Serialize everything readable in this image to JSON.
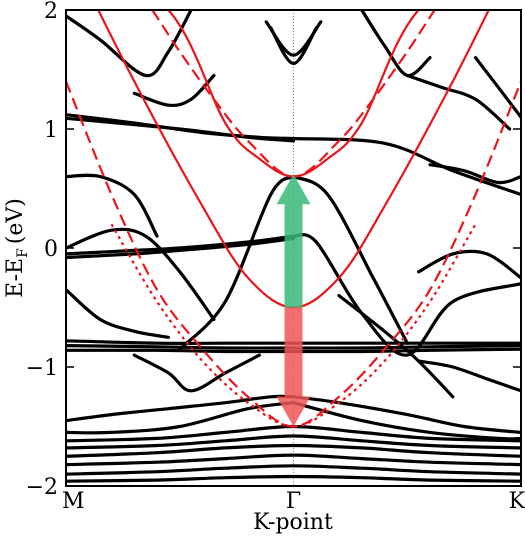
{
  "chart_data": {
    "type": "line",
    "title": "",
    "xlabel": "K-point",
    "ylabel": "E-E",
    "ylabel_subscript": "F",
    "ylabel_unit": "(eV)",
    "ylim": [
      -2,
      2
    ],
    "yticks": [
      -2,
      -1,
      0,
      1,
      2
    ],
    "ytick_labels": [
      "−2",
      "−1",
      "0",
      "1",
      "2"
    ],
    "xlim": [
      -1,
      1
    ],
    "xticks": [
      -1,
      0,
      1
    ],
    "xtick_labels": [
      "M",
      "Γ",
      "K"
    ],
    "gamma_gridline": true,
    "colors": {
      "bands": "#000000",
      "model": "#e8161b",
      "arrow_up": "#3ab878",
      "arrow_down": "#f05656"
    },
    "black_bands": [
      {
        "x": [
          -1,
          -0.7,
          -0.4,
          -0.15,
          0
        ],
        "y": [
          1.12,
          1.05,
          0.97,
          0.93,
          0.92
        ]
      },
      {
        "x": [
          -1,
          -0.5,
          -0.2,
          0
        ],
        "y": [
          1.09,
          1.0,
          0.93,
          0.9
        ]
      },
      {
        "x": [
          0,
          0.4,
          0.7,
          1
        ],
        "y": [
          0.92,
          0.88,
          0.65,
          0.45
        ]
      },
      {
        "x": [
          -1,
          -0.7,
          -0.5,
          -0.2,
          0
        ],
        "y": [
          -0.05,
          -0.02,
          0.0,
          0.05,
          0.1
        ]
      },
      {
        "x": [
          -1,
          -0.7,
          -0.5,
          -0.2,
          0
        ],
        "y": [
          -0.08,
          -0.05,
          -0.02,
          0.03,
          0.08
        ]
      },
      {
        "x": [
          0,
          0.1,
          0.3,
          0.5,
          0.7,
          1
        ],
        "y": [
          0.1,
          0.05,
          -0.55,
          -0.9,
          -0.45,
          -0.3
        ]
      },
      {
        "x": [
          0.55,
          0.7,
          0.85,
          1
        ],
        "y": [
          -0.2,
          -0.05,
          -0.05,
          -0.25
        ]
      },
      {
        "x": [
          -1,
          -0.8,
          -0.65,
          -0.5,
          -0.35
        ],
        "y": [
          0.0,
          0.15,
          0.1,
          -0.2,
          -0.6
        ]
      },
      {
        "x": [
          -1,
          -0.85,
          -0.7,
          -0.55
        ],
        "y": [
          -0.35,
          -0.6,
          -0.7,
          -0.75
        ]
      },
      {
        "x": [
          -1,
          -0.6,
          -0.3,
          0,
          0.3,
          0.6,
          1
        ],
        "y": [
          -0.78,
          -0.8,
          -0.8,
          -0.8,
          -0.8,
          -0.8,
          -0.8
        ]
      },
      {
        "x": [
          -1,
          -0.6,
          -0.3,
          0,
          0.3,
          0.6,
          1
        ],
        "y": [
          -0.82,
          -0.83,
          -0.84,
          -0.84,
          -0.84,
          -0.83,
          -0.82
        ]
      },
      {
        "x": [
          -1,
          -0.6,
          -0.3,
          0,
          0.3,
          0.6,
          1
        ],
        "y": [
          -0.86,
          -0.86,
          -0.87,
          -0.87,
          -0.87,
          -0.86,
          -0.85
        ]
      },
      {
        "x": [
          -0.5,
          -0.3,
          -0.1,
          0
        ],
        "y": [
          -0.85,
          -0.45,
          0.45,
          0.6
        ]
      },
      {
        "x": [
          0,
          0.15,
          0.35,
          0.5
        ],
        "y": [
          0.6,
          0.45,
          -0.25,
          -0.8
        ]
      },
      {
        "x": [
          -1,
          -0.85,
          -0.7,
          -0.6
        ],
        "y": [
          0.6,
          0.6,
          0.45,
          0.1
        ]
      },
      {
        "x": [
          -0.7,
          -0.55,
          -0.45,
          -0.35
        ],
        "y": [
          1.3,
          1.2,
          1.25,
          1.45
        ]
      },
      {
        "x": [
          -1,
          -0.85,
          -0.65,
          -0.55,
          -0.45
        ],
        "y": [
          1.95,
          1.75,
          1.45,
          1.65,
          2.0
        ]
      },
      {
        "x": [
          -0.1,
          0,
          0.1
        ],
        "y": [
          1.85,
          1.55,
          1.85
        ]
      },
      {
        "x": [
          -0.12,
          0,
          0.12
        ],
        "y": [
          1.9,
          1.62,
          1.9
        ]
      },
      {
        "x": [
          0.3,
          0.4,
          0.5,
          0.6
        ],
        "y": [
          2.0,
          1.7,
          1.45,
          1.6
        ]
      },
      {
        "x": [
          0.5,
          0.65,
          0.8,
          0.95
        ],
        "y": [
          1.45,
          1.35,
          1.25,
          1.0
        ]
      },
      {
        "x": [
          0.6,
          0.75,
          0.9,
          1
        ],
        "y": [
          0.7,
          0.65,
          0.55,
          0.6
        ]
      },
      {
        "x": [
          0.8,
          0.9,
          1
        ],
        "y": [
          1.6,
          1.35,
          1.1
        ]
      },
      {
        "x": [
          -1,
          -0.8,
          -0.55,
          -0.3,
          -0.1,
          0
        ],
        "y": [
          -1.45,
          -1.4,
          -1.35,
          -1.3,
          -1.25,
          -1.25
        ]
      },
      {
        "x": [
          0,
          0.2,
          0.5,
          0.75,
          1
        ],
        "y": [
          -1.25,
          -1.3,
          -1.4,
          -1.5,
          -1.55
        ]
      },
      {
        "x": [
          -0.7,
          -0.55,
          -0.45,
          -0.3,
          -0.15
        ],
        "y": [
          -0.9,
          -1.05,
          -1.2,
          -1.05,
          -0.9
        ]
      },
      {
        "x": [
          -1,
          -0.8,
          -0.5,
          -0.2,
          0
        ],
        "y": [
          -1.55,
          -1.55,
          -1.5,
          -1.35,
          -1.3
        ]
      },
      {
        "x": [
          0,
          0.3,
          0.6,
          0.9,
          1
        ],
        "y": [
          -1.3,
          -1.45,
          -1.55,
          -1.6,
          -1.6
        ]
      },
      {
        "x": [
          -1,
          -0.6,
          -0.3,
          0,
          0.3,
          0.6,
          1
        ],
        "y": [
          -1.62,
          -1.6,
          -1.55,
          -1.5,
          -1.55,
          -1.6,
          -1.62
        ]
      },
      {
        "x": [
          -1,
          -0.6,
          -0.3,
          0,
          0.3,
          0.6,
          1
        ],
        "y": [
          -1.68,
          -1.66,
          -1.62,
          -1.58,
          -1.62,
          -1.66,
          -1.68
        ]
      },
      {
        "x": [
          -1,
          -0.6,
          -0.3,
          0,
          0.3,
          0.6,
          1
        ],
        "y": [
          -1.75,
          -1.72,
          -1.68,
          -1.66,
          -1.68,
          -1.72,
          -1.75
        ]
      },
      {
        "x": [
          -1,
          -0.6,
          -0.3,
          0,
          0.3,
          0.6,
          1
        ],
        "y": [
          -1.82,
          -1.8,
          -1.77,
          -1.74,
          -1.77,
          -1.8,
          -1.82
        ]
      },
      {
        "x": [
          -1,
          -0.6,
          -0.3,
          0,
          0.3,
          0.6,
          1
        ],
        "y": [
          -1.9,
          -1.88,
          -1.85,
          -1.83,
          -1.85,
          -1.88,
          -1.9
        ]
      },
      {
        "x": [
          -1,
          -0.6,
          -0.3,
          0,
          0.3,
          0.6,
          1
        ],
        "y": [
          -1.96,
          -1.95,
          -1.93,
          -1.92,
          -1.93,
          -1.95,
          -1.96
        ]
      },
      {
        "x": [
          0.2,
          0.4,
          0.55,
          0.7
        ],
        "y": [
          -0.4,
          -0.7,
          -0.95,
          -1.25
        ]
      },
      {
        "x": [
          0.55,
          0.7,
          0.85,
          1
        ],
        "y": [
          -0.95,
          -1.0,
          -1.1,
          -1.2
        ]
      }
    ],
    "red_solid_bands": [
      {
        "x": [
          -1,
          -0.7,
          -0.4,
          -0.2,
          0,
          0.2,
          0.4,
          0.7,
          1
        ],
        "y": [
          2.55,
          1.4,
          0.35,
          -0.25,
          -0.5,
          -0.25,
          0.35,
          1.4,
          2.55
        ]
      },
      {
        "x": [
          -1,
          -0.55,
          -0.3,
          -0.15,
          0,
          0.15,
          0.3,
          0.55,
          1
        ],
        "y": [
          2.55,
          2.0,
          1.05,
          0.75,
          0.6,
          0.75,
          1.05,
          2.0,
          2.55
        ]
      }
    ],
    "red_dashed_bands": [
      {
        "x": [
          -0.62,
          -0.5,
          -0.35,
          -0.2,
          0,
          0.2,
          0.35,
          0.5,
          0.62
        ],
        "y": [
          2.0,
          1.65,
          1.25,
          0.9,
          0.6,
          0.9,
          1.25,
          1.65,
          2.0
        ]
      },
      {
        "x": [
          -1,
          -0.8,
          -0.6,
          -0.4,
          -0.2,
          0,
          0.2,
          0.4,
          0.6,
          0.8,
          1
        ],
        "y": [
          1.4,
          0.45,
          -0.35,
          -0.85,
          -1.25,
          -1.5,
          -1.25,
          -0.85,
          -0.35,
          0.45,
          1.4
        ]
      }
    ],
    "red_dotted_bands": [
      {
        "x": [
          -0.8,
          -0.6,
          -0.4,
          -0.2,
          0,
          0.2,
          0.4,
          0.6,
          0.8
        ],
        "y": [
          0.2,
          -0.45,
          -0.95,
          -1.3,
          -1.5,
          -1.3,
          -0.95,
          -0.45,
          0.2
        ]
      }
    ],
    "arrows": [
      {
        "x": 0,
        "y_from": -0.5,
        "y_to": 0.62,
        "color": "arrow_up"
      },
      {
        "x": 0,
        "y_from": -0.5,
        "y_to": -1.5,
        "color": "arrow_down"
      }
    ]
  }
}
